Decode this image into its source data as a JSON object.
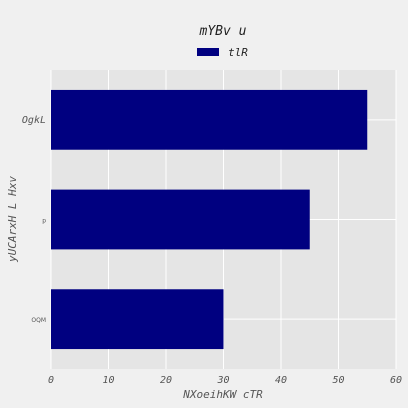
{
  "chart_data": {
    "type": "bar",
    "orientation": "horizontal",
    "title": "mYBv u",
    "xlabel": "NXoeihKW cTR",
    "ylabel": "yUCArxH  L Hxv",
    "categories": [
      "OgkL",
      "p",
      "OQM"
    ],
    "series": [
      {
        "name": "tlR",
        "values": [
          55,
          45,
          30
        ],
        "color": "#000080"
      }
    ],
    "xlim": [
      0,
      60
    ],
    "xticks": [
      0,
      10,
      20,
      30,
      40,
      50,
      60
    ],
    "grid": true,
    "legend": "top-center",
    "background": "#e5e5e5"
  }
}
